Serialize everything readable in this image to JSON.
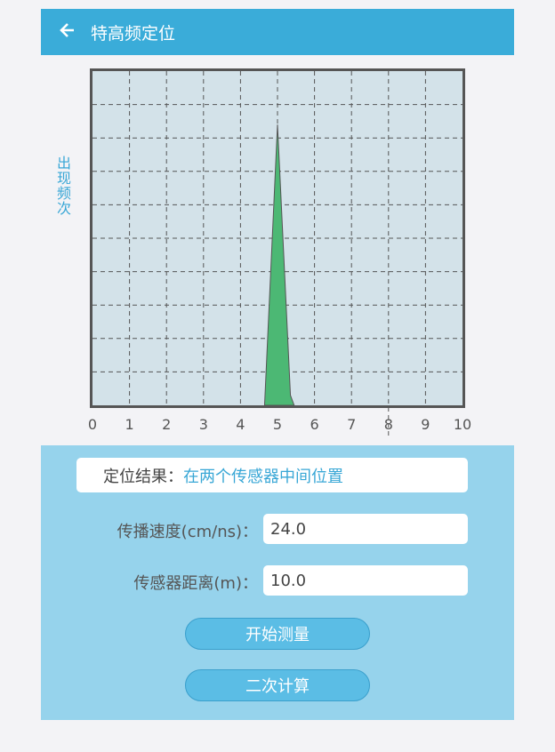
{
  "header": {
    "title": "特高频定位",
    "back_icon": "arrow-left-icon"
  },
  "chart_data": {
    "type": "area",
    "title": "",
    "xlabel": "",
    "ylabel": "出现频次",
    "xlim": [
      0,
      10
    ],
    "ylim": [
      0,
      10
    ],
    "xticks": [
      "0",
      "1",
      "2",
      "3",
      "4",
      "5",
      "6",
      "7",
      "8",
      "9",
      "10"
    ],
    "grid": true,
    "x": [
      4.65,
      5.0,
      5.35,
      5.45
    ],
    "y": [
      0,
      8.4,
      0.3,
      0
    ],
    "fill_color": "#4cb874",
    "background_color": "#d3e2e9"
  },
  "panel": {
    "result_label": "定位结果：",
    "result_value": "在两个传感器中间位置",
    "speed_label": "传播速度(cm/ns)：",
    "speed_value": "24.0",
    "distance_label": "传感器距离(m)：",
    "distance_value": "10.0",
    "start_button": "开始测量",
    "recalc_button": "二次计算"
  },
  "colors": {
    "header": "#3aacd9",
    "panel": "#96d3ec",
    "accent": "#39a7d6"
  }
}
